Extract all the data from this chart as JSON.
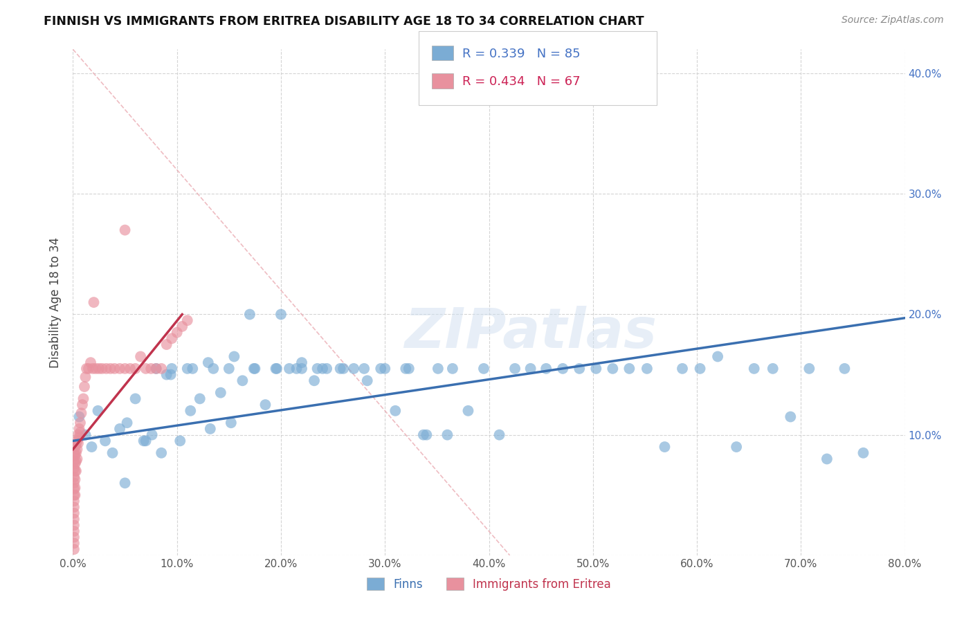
{
  "title": "FINNISH VS IMMIGRANTS FROM ERITREA DISABILITY AGE 18 TO 34 CORRELATION CHART",
  "source": "Source: ZipAtlas.com",
  "ylabel": "Disability Age 18 to 34",
  "xlim": [
    0.0,
    0.8
  ],
  "ylim": [
    0.0,
    0.42
  ],
  "xticks": [
    0.0,
    0.1,
    0.2,
    0.3,
    0.4,
    0.5,
    0.6,
    0.7,
    0.8
  ],
  "yticks": [
    0.0,
    0.1,
    0.2,
    0.3,
    0.4
  ],
  "xticklabels": [
    "0.0%",
    "10.0%",
    "20.0%",
    "30.0%",
    "40.0%",
    "50.0%",
    "60.0%",
    "70.0%",
    "80.0%"
  ],
  "yticklabels_right": [
    "",
    "10.0%",
    "20.0%",
    "30.0%",
    "40.0%"
  ],
  "finns_color": "#7bacd4",
  "eritrea_color": "#e8919e",
  "finn_R": 0.339,
  "finn_N": 85,
  "eritrea_R": 0.434,
  "eritrea_N": 67,
  "watermark": "ZIPatlas",
  "finns_line_color": "#3a6fb0",
  "eritrea_line_color": "#c0334d",
  "finns_line_x": [
    0.0,
    0.8
  ],
  "finns_line_y": [
    0.095,
    0.197
  ],
  "eritrea_line_x": [
    0.0,
    0.105
  ],
  "eritrea_line_y": [
    0.088,
    0.2
  ],
  "dash_line_x": [
    0.0,
    0.42
  ],
  "dash_line_y": [
    0.42,
    0.0
  ],
  "finns_x": [
    0.006,
    0.012,
    0.018,
    0.024,
    0.031,
    0.038,
    0.045,
    0.052,
    0.06,
    0.068,
    0.076,
    0.085,
    0.094,
    0.103,
    0.113,
    0.122,
    0.132,
    0.142,
    0.152,
    0.163,
    0.174,
    0.185,
    0.196,
    0.208,
    0.22,
    0.232,
    0.244,
    0.257,
    0.27,
    0.283,
    0.296,
    0.31,
    0.323,
    0.337,
    0.351,
    0.365,
    0.38,
    0.395,
    0.41,
    0.425,
    0.44,
    0.455,
    0.471,
    0.487,
    0.503,
    0.519,
    0.535,
    0.552,
    0.569,
    0.586,
    0.603,
    0.62,
    0.638,
    0.655,
    0.673,
    0.69,
    0.708,
    0.725,
    0.742,
    0.76,
    0.13,
    0.07,
    0.09,
    0.11,
    0.15,
    0.17,
    0.2,
    0.22,
    0.24,
    0.26,
    0.28,
    0.3,
    0.32,
    0.34,
    0.36,
    0.08,
    0.095,
    0.115,
    0.135,
    0.155,
    0.175,
    0.195,
    0.215,
    0.235,
    0.05
  ],
  "finns_y": [
    0.115,
    0.1,
    0.09,
    0.12,
    0.095,
    0.085,
    0.105,
    0.11,
    0.13,
    0.095,
    0.1,
    0.085,
    0.15,
    0.095,
    0.12,
    0.13,
    0.105,
    0.135,
    0.11,
    0.145,
    0.155,
    0.125,
    0.155,
    0.155,
    0.16,
    0.145,
    0.155,
    0.155,
    0.155,
    0.145,
    0.155,
    0.12,
    0.155,
    0.1,
    0.155,
    0.155,
    0.12,
    0.155,
    0.1,
    0.155,
    0.155,
    0.155,
    0.155,
    0.155,
    0.155,
    0.155,
    0.155,
    0.155,
    0.09,
    0.155,
    0.155,
    0.165,
    0.09,
    0.155,
    0.155,
    0.115,
    0.155,
    0.08,
    0.155,
    0.085,
    0.16,
    0.095,
    0.15,
    0.155,
    0.155,
    0.2,
    0.2,
    0.155,
    0.155,
    0.155,
    0.155,
    0.155,
    0.155,
    0.1,
    0.1,
    0.155,
    0.155,
    0.155,
    0.155,
    0.165,
    0.155,
    0.155,
    0.155,
    0.155,
    0.06
  ],
  "eritrea_x": [
    0.001,
    0.001,
    0.001,
    0.001,
    0.001,
    0.001,
    0.001,
    0.001,
    0.001,
    0.001,
    0.001,
    0.001,
    0.001,
    0.001,
    0.001,
    0.001,
    0.002,
    0.002,
    0.002,
    0.002,
    0.002,
    0.002,
    0.002,
    0.003,
    0.003,
    0.003,
    0.003,
    0.004,
    0.004,
    0.004,
    0.005,
    0.005,
    0.006,
    0.006,
    0.007,
    0.007,
    0.008,
    0.009,
    0.01,
    0.011,
    0.012,
    0.013,
    0.015,
    0.017,
    0.019,
    0.022,
    0.025,
    0.028,
    0.032,
    0.036,
    0.04,
    0.045,
    0.05,
    0.055,
    0.06,
    0.065,
    0.07,
    0.075,
    0.08,
    0.085,
    0.09,
    0.095,
    0.1,
    0.105,
    0.11,
    0.05,
    0.02
  ],
  "eritrea_y": [
    0.085,
    0.078,
    0.072,
    0.065,
    0.06,
    0.055,
    0.05,
    0.045,
    0.04,
    0.035,
    0.03,
    0.025,
    0.02,
    0.015,
    0.01,
    0.005,
    0.09,
    0.083,
    0.076,
    0.07,
    0.063,
    0.056,
    0.05,
    0.092,
    0.085,
    0.078,
    0.07,
    0.095,
    0.088,
    0.08,
    0.1,
    0.093,
    0.105,
    0.098,
    0.11,
    0.102,
    0.118,
    0.125,
    0.13,
    0.14,
    0.148,
    0.155,
    0.155,
    0.16,
    0.155,
    0.155,
    0.155,
    0.155,
    0.155,
    0.155,
    0.155,
    0.155,
    0.155,
    0.155,
    0.155,
    0.165,
    0.155,
    0.155,
    0.155,
    0.155,
    0.175,
    0.18,
    0.185,
    0.19,
    0.195,
    0.27,
    0.21
  ]
}
